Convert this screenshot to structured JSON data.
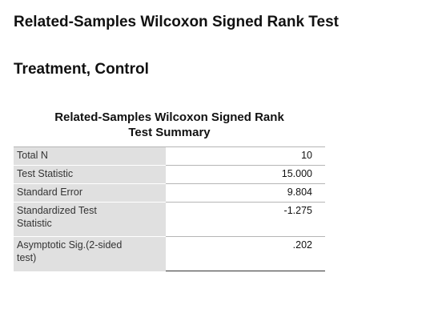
{
  "title": "Related-Samples Wilcoxon Signed Rank Test",
  "subtitle": "Treatment, Control",
  "summary": {
    "caption_line1": "Related-Samples Wilcoxon Signed Rank",
    "caption_line2": "Test Summary",
    "rows": [
      {
        "label": "Total N",
        "value": "10"
      },
      {
        "label": "Test Statistic",
        "value": "15.000"
      },
      {
        "label": "Standard Error",
        "value": "9.804"
      },
      {
        "label_line1": "Standardized Test",
        "label_line2": "Statistic",
        "value": "-1.275"
      },
      {
        "label_line1": "Asymptotic Sig.(2-sided",
        "label_line2": "test)",
        "value": ".202"
      }
    ]
  }
}
